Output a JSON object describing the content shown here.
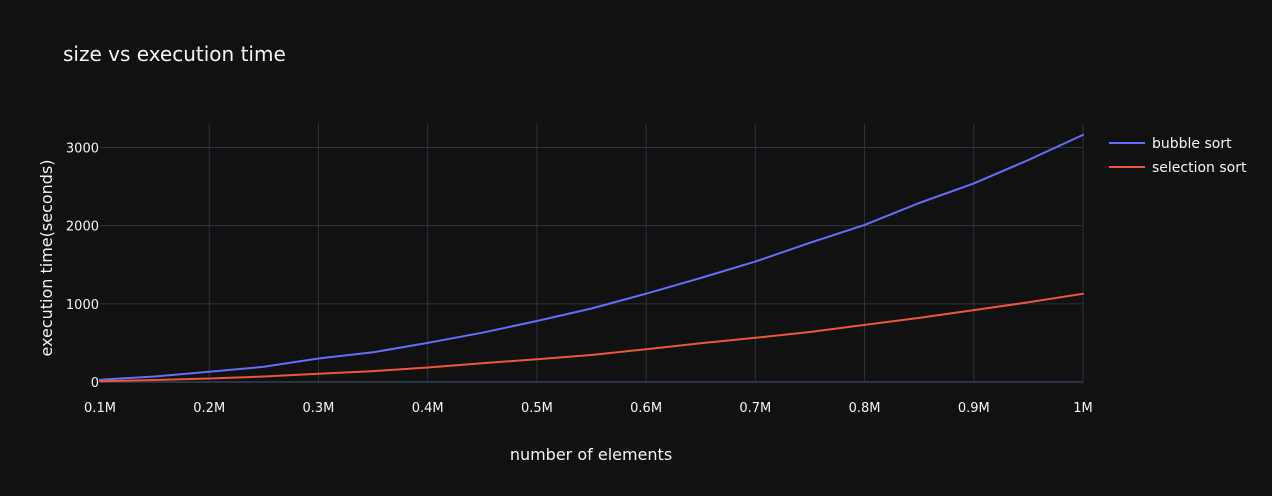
{
  "chart_data": {
    "type": "line",
    "title": "size vs execution time",
    "xlabel": "number of elements",
    "ylabel": "execution time(seconds)",
    "xlim": [
      100000,
      1000000
    ],
    "ylim": [
      0,
      3300
    ],
    "xticks": [
      {
        "value": 100000,
        "label": "0.1M"
      },
      {
        "value": 200000,
        "label": "0.2M"
      },
      {
        "value": 300000,
        "label": "0.3M"
      },
      {
        "value": 400000,
        "label": "0.4M"
      },
      {
        "value": 500000,
        "label": "0.5M"
      },
      {
        "value": 600000,
        "label": "0.6M"
      },
      {
        "value": 700000,
        "label": "0.7M"
      },
      {
        "value": 800000,
        "label": "0.8M"
      },
      {
        "value": 900000,
        "label": "0.9M"
      },
      {
        "value": 1000000,
        "label": "1M"
      }
    ],
    "yticks": [
      {
        "value": 0,
        "label": "0"
      },
      {
        "value": 1000,
        "label": "1000"
      },
      {
        "value": 2000,
        "label": "2000"
      },
      {
        "value": 3000,
        "label": "3000"
      }
    ],
    "grid": true,
    "legend_position": "top-right",
    "x": [
      100000,
      150000,
      200000,
      250000,
      300000,
      350000,
      400000,
      450000,
      500000,
      550000,
      600000,
      650000,
      700000,
      750000,
      800000,
      850000,
      900000,
      950000,
      1000000
    ],
    "series": [
      {
        "name": "bubble sort",
        "color": "#636efa",
        "values": [
          30,
          70,
          130,
          195,
          300,
          380,
          500,
          630,
          780,
          940,
          1130,
          1330,
          1540,
          1780,
          2010,
          2290,
          2540,
          2840,
          3160
        ]
      },
      {
        "name": "selection sort",
        "color": "#ef553b",
        "values": [
          10,
          25,
          45,
          70,
          105,
          140,
          185,
          240,
          290,
          345,
          420,
          495,
          565,
          640,
          730,
          820,
          920,
          1020,
          1130
        ]
      }
    ]
  }
}
